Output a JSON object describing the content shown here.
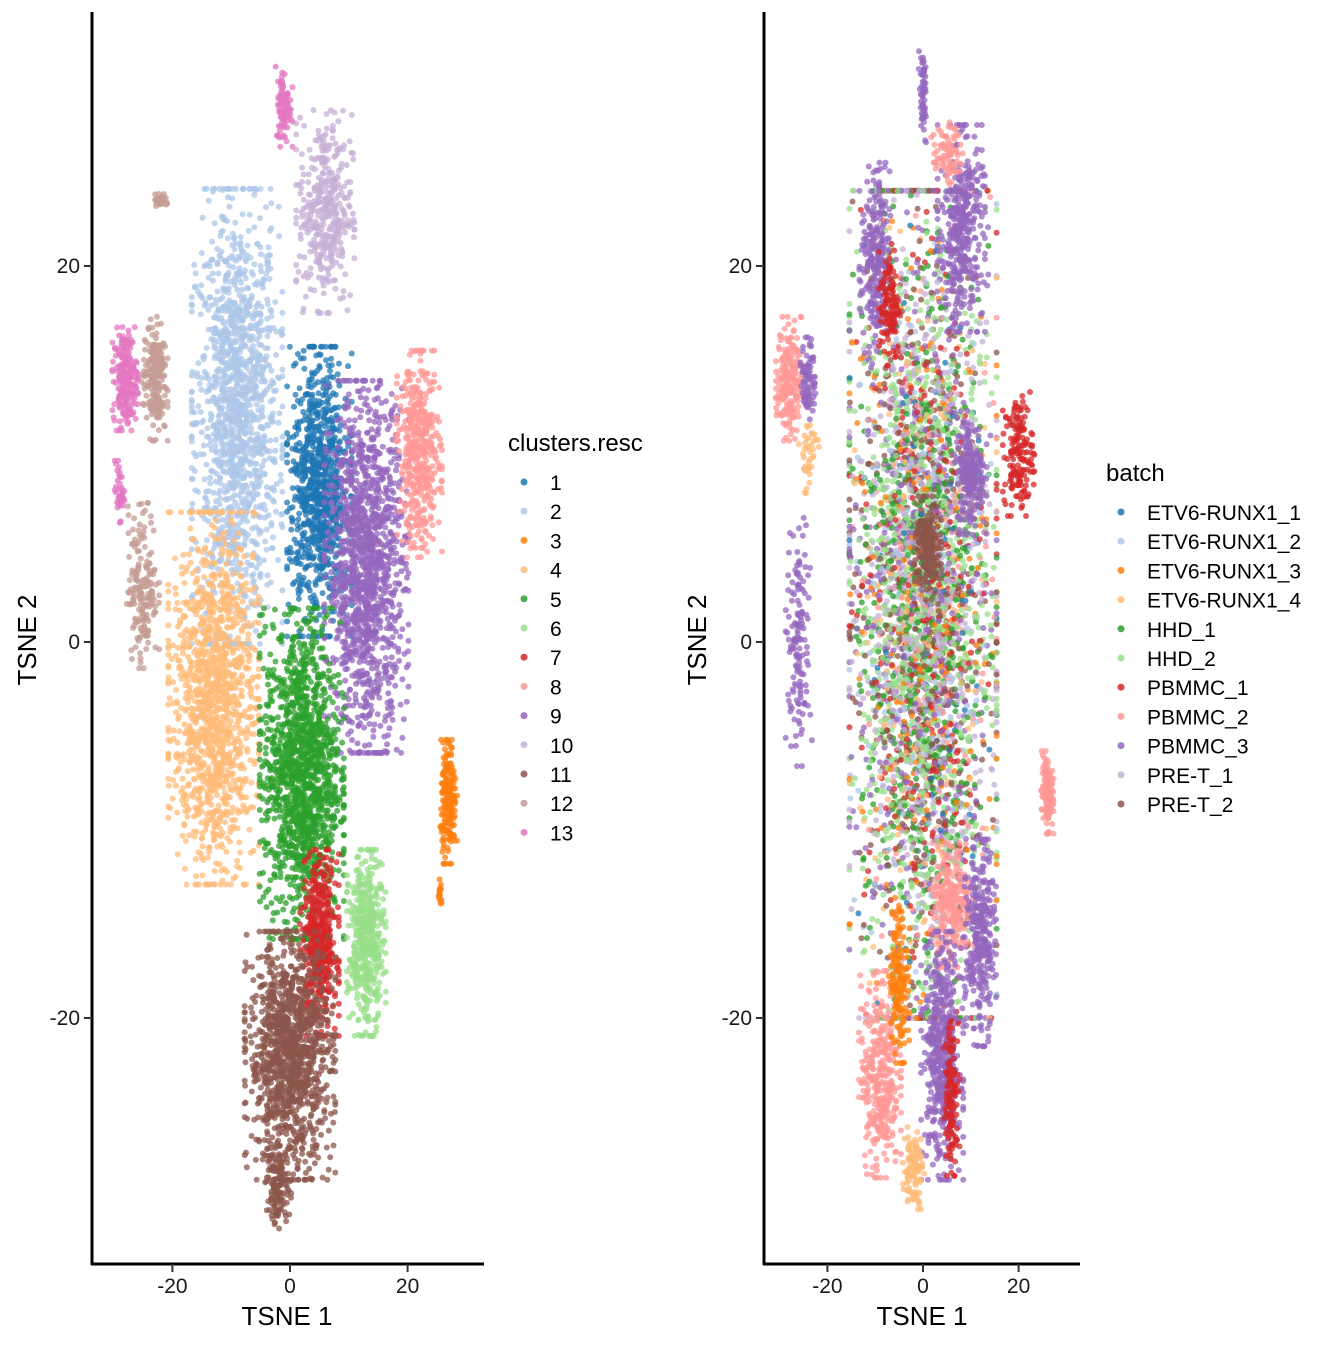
{
  "chart_data": [
    {
      "type": "scatter",
      "xlabel": "TSNE 1",
      "ylabel": "TSNE 2",
      "xlim": [
        -33,
        33
      ],
      "ylim": [
        -33,
        34
      ],
      "x_ticks": [
        "-20",
        "0",
        "20"
      ],
      "y_ticks": [
        "-20",
        "0",
        "20"
      ],
      "grid": false,
      "legend_position": "right",
      "legend_title": "clusters.resc",
      "series": [
        {
          "name": "1",
          "color": "#1f77b4"
        },
        {
          "name": "2",
          "color": "#aec7e8"
        },
        {
          "name": "3",
          "color": "#ff7f0e"
        },
        {
          "name": "4",
          "color": "#ffbb78"
        },
        {
          "name": "5",
          "color": "#2ca02c"
        },
        {
          "name": "6",
          "color": "#98df8a"
        },
        {
          "name": "7",
          "color": "#d62728"
        },
        {
          "name": "8",
          "color": "#ff9896"
        },
        {
          "name": "9",
          "color": "#9467bd"
        },
        {
          "name": "10",
          "color": "#c5b0d5"
        },
        {
          "name": "11",
          "color": "#8c564b"
        },
        {
          "name": "12",
          "color": "#c49c94"
        },
        {
          "name": "13",
          "color": "#e377c2"
        }
      ],
      "regions": [
        {
          "series": "2",
          "cx": -9,
          "cy": 12,
          "rx": 7,
          "ry": 11,
          "n": 1400
        },
        {
          "series": "10",
          "cx": 6,
          "cy": 23,
          "rx": 4.5,
          "ry": 5,
          "n": 380
        },
        {
          "series": "13",
          "cx": -1,
          "cy": 28.5,
          "rx": 1.3,
          "ry": 2,
          "n": 90
        },
        {
          "series": "13",
          "cx": -28,
          "cy": 14,
          "rx": 2,
          "ry": 2.5,
          "n": 220
        },
        {
          "series": "13",
          "cx": -29,
          "cy": 8,
          "rx": 0.8,
          "ry": 1.5,
          "n": 40
        },
        {
          "series": "12",
          "cx": -23,
          "cy": 14,
          "rx": 2,
          "ry": 3,
          "n": 200
        },
        {
          "series": "12",
          "cx": -25,
          "cy": 3,
          "rx": 2.5,
          "ry": 4,
          "n": 180
        },
        {
          "series": "12",
          "cx": -22,
          "cy": 23.5,
          "rx": 1.3,
          "ry": 0.5,
          "n": 25
        },
        {
          "series": "1",
          "cx": 5,
          "cy": 8,
          "rx": 5,
          "ry": 7,
          "n": 900
        },
        {
          "series": "9",
          "cx": 13,
          "cy": 4,
          "rx": 6.5,
          "ry": 9,
          "n": 1300
        },
        {
          "series": "8",
          "cx": 22,
          "cy": 10,
          "rx": 3.5,
          "ry": 5,
          "n": 450
        },
        {
          "series": "4",
          "cx": -13,
          "cy": -3,
          "rx": 7,
          "ry": 9,
          "n": 1300
        },
        {
          "series": "5",
          "cx": 2,
          "cy": -7,
          "rx": 6.5,
          "ry": 8,
          "n": 1400
        },
        {
          "series": "3",
          "cx": 27,
          "cy": -8.5,
          "rx": 1.3,
          "ry": 3,
          "n": 200
        },
        {
          "series": "3",
          "cx": 25.5,
          "cy": -13.5,
          "rx": 0.4,
          "ry": 0.8,
          "n": 15
        },
        {
          "series": "7",
          "cx": 5,
          "cy": -16,
          "rx": 3,
          "ry": 4.5,
          "n": 450
        },
        {
          "series": "6",
          "cx": 13,
          "cy": -16,
          "rx": 3,
          "ry": 4.5,
          "n": 450
        },
        {
          "series": "11",
          "cx": 0,
          "cy": -22,
          "rx": 7,
          "ry": 6,
          "n": 1200
        },
        {
          "series": "11",
          "cx": -2,
          "cy": -29,
          "rx": 2,
          "ry": 2,
          "n": 120
        }
      ]
    },
    {
      "type": "scatter",
      "xlabel": "TSNE 1",
      "ylabel": "TSNE 2",
      "xlim": [
        -33,
        33
      ],
      "ylim": [
        -33,
        34
      ],
      "x_ticks": [
        "-20",
        "0",
        "20"
      ],
      "y_ticks": [
        "-20",
        "0",
        "20"
      ],
      "grid": false,
      "legend_position": "right",
      "legend_title": "batch",
      "series": [
        {
          "name": "ETV6-RUNX1_1",
          "color": "#1f77b4"
        },
        {
          "name": "ETV6-RUNX1_2",
          "color": "#aec7e8"
        },
        {
          "name": "ETV6-RUNX1_3",
          "color": "#ff7f0e"
        },
        {
          "name": "ETV6-RUNX1_4",
          "color": "#ffbb78"
        },
        {
          "name": "HHD_1",
          "color": "#2ca02c"
        },
        {
          "name": "HHD_2",
          "color": "#98df8a"
        },
        {
          "name": "PBMMC_1",
          "color": "#d62728"
        },
        {
          "name": "PBMMC_2",
          "color": "#ff9896"
        },
        {
          "name": "PBMMC_3",
          "color": "#9467bd"
        },
        {
          "name": "PRE-T_1",
          "color": "#c5b0d5"
        },
        {
          "name": "PRE-T_2",
          "color": "#8c564b"
        }
      ],
      "regions": [
        {
          "mix": true,
          "cx": 0,
          "cy": 2,
          "rx": 14,
          "ry": 20,
          "n": 4500,
          "weights": [
            0.02,
            0.05,
            0.06,
            0.04,
            0.12,
            0.22,
            0.08,
            0.04,
            0.12,
            0.15,
            0.1
          ]
        },
        {
          "series": "PRE-T_2",
          "cx": 1,
          "cy": 5,
          "rx": 2.5,
          "ry": 2.5,
          "n": 180
        },
        {
          "series": "PBMMC_3",
          "cx": 8,
          "cy": 22,
          "rx": 4.5,
          "ry": 5,
          "n": 380
        },
        {
          "series": "PBMMC_3",
          "cx": 0,
          "cy": 29,
          "rx": 0.8,
          "ry": 2.2,
          "n": 60
        },
        {
          "series": "PBMMC_2",
          "cx": 5,
          "cy": 26,
          "rx": 3,
          "ry": 1.5,
          "n": 80
        },
        {
          "series": "PBMMC_2",
          "cx": -28,
          "cy": 14,
          "rx": 2.5,
          "ry": 3,
          "n": 200
        },
        {
          "series": "PBMMC_3",
          "cx": -24,
          "cy": 14,
          "rx": 1.5,
          "ry": 2,
          "n": 80
        },
        {
          "series": "PBMMC_3",
          "cx": -26,
          "cy": 0,
          "rx": 2.5,
          "ry": 6,
          "n": 140
        },
        {
          "series": "PBMMC_3",
          "cx": -10,
          "cy": 20,
          "rx": 3,
          "ry": 5,
          "n": 250
        },
        {
          "series": "PBMMC_1",
          "cx": -7,
          "cy": 18,
          "rx": 2,
          "ry": 3,
          "n": 120
        },
        {
          "series": "PBMMC_3",
          "cx": 10,
          "cy": 9,
          "rx": 3,
          "ry": 3,
          "n": 200
        },
        {
          "series": "PBMMC_1",
          "cx": 20,
          "cy": 10,
          "rx": 3,
          "ry": 3,
          "n": 160
        },
        {
          "series": "PBMMC_2",
          "cx": 26,
          "cy": -8,
          "rx": 1.2,
          "ry": 2,
          "n": 140
        },
        {
          "series": "PBMMC_2",
          "cx": -9,
          "cy": -23,
          "rx": 4,
          "ry": 5,
          "n": 350
        },
        {
          "series": "PBMMC_2",
          "cx": 6,
          "cy": -14,
          "rx": 4,
          "ry": 3,
          "n": 250
        },
        {
          "series": "PBMMC_3",
          "cx": 4,
          "cy": -22,
          "rx": 4,
          "ry": 6,
          "n": 500
        },
        {
          "series": "PBMMC_3",
          "cx": 12,
          "cy": -16,
          "rx": 3,
          "ry": 5,
          "n": 300
        },
        {
          "series": "PBMMC_1",
          "cx": 6,
          "cy": -24,
          "rx": 1.5,
          "ry": 4,
          "n": 120
        },
        {
          "series": "ETV6-RUNX1_3",
          "cx": -5,
          "cy": -18,
          "rx": 2,
          "ry": 4,
          "n": 160
        },
        {
          "series": "ETV6-RUNX1_4",
          "cx": -2,
          "cy": -28,
          "rx": 2,
          "ry": 2,
          "n": 110
        },
        {
          "series": "ETV6-RUNX1_4",
          "cx": -24,
          "cy": 10,
          "rx": 2,
          "ry": 2,
          "n": 40
        }
      ]
    }
  ]
}
